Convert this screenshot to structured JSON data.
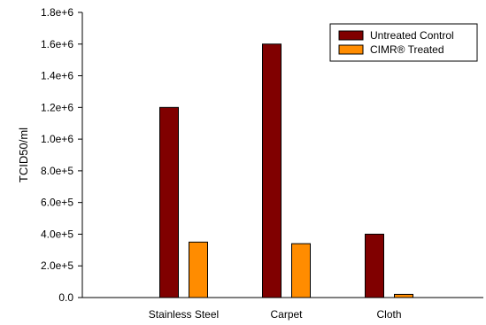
{
  "chart_data": {
    "type": "bar",
    "categories": [
      "Stainless Steel",
      "Carpet",
      "Cloth"
    ],
    "series": [
      {
        "name": "Untreated Control",
        "color": "#800000",
        "values": [
          1200000,
          1600000,
          400000
        ]
      },
      {
        "name": "CIMR® Treated",
        "color": "#ff8c00",
        "values": [
          350000,
          340000,
          20000
        ]
      }
    ],
    "title": "",
    "xlabel": "",
    "ylabel": "TCID50/ml",
    "ylim": [
      0,
      1800000
    ],
    "yticks": [
      0,
      200000,
      400000,
      600000,
      800000,
      1000000,
      1200000,
      1400000,
      1600000,
      1800000
    ],
    "ytick_labels": [
      "0.0",
      "2.0e+5",
      "4.0e+5",
      "6.0e+5",
      "8.0e+5",
      "1.0e+6",
      "1.2e+6",
      "1.4e+6",
      "1.6e+6",
      "1.8e+6"
    ],
    "grid": false,
    "legend_position": "top-right"
  }
}
